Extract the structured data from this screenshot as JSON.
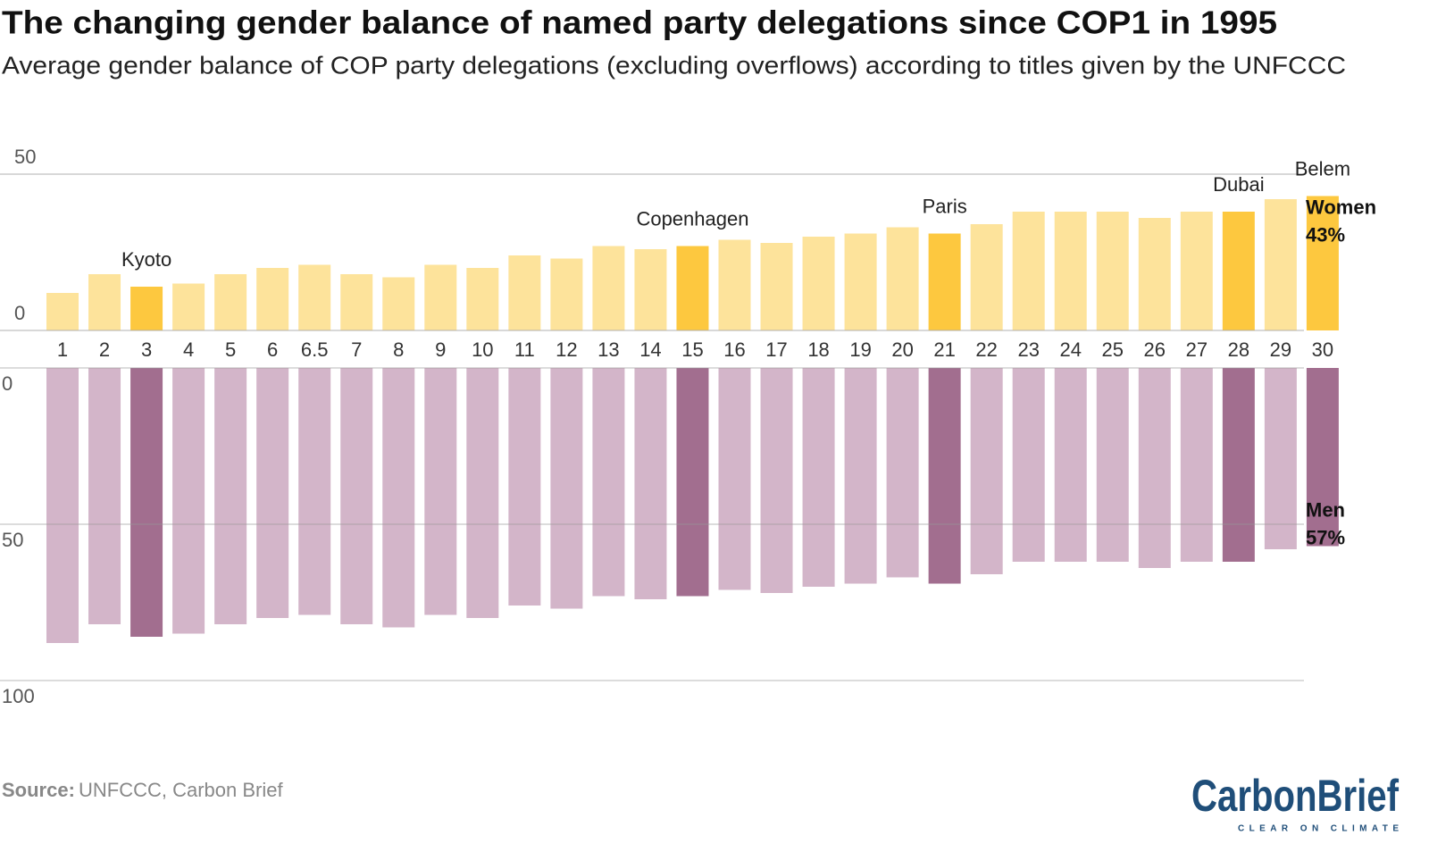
{
  "chart_data": {
    "type": "bar",
    "title": "The changing gender balance of named party delegations since COP1 in 1995",
    "subtitle": "Average gender balance of COP party delegations (excluding overflows) according to titles given by the UNFCCC",
    "categories": [
      "1",
      "2",
      "3",
      "4",
      "5",
      "6",
      "6.5",
      "7",
      "8",
      "9",
      "10",
      "11",
      "12",
      "13",
      "14",
      "15",
      "16",
      "17",
      "18",
      "19",
      "20",
      "21",
      "22",
      "23",
      "24",
      "25",
      "26",
      "27",
      "28",
      "29",
      "30"
    ],
    "series": [
      {
        "name": "Women",
        "color": "#fde39b",
        "highlight_color": "#fdc83f",
        "values": [
          12,
          18,
          14,
          15,
          18,
          20,
          21,
          18,
          17,
          21,
          20,
          24,
          23,
          27,
          26,
          27,
          29,
          28,
          30,
          31,
          33,
          31,
          34,
          38,
          38,
          38,
          36,
          38,
          38,
          42,
          43
        ],
        "value_labels": [
          null,
          null,
          null,
          null,
          null,
          null,
          null,
          null,
          null,
          null,
          null,
          null,
          null,
          null,
          null,
          null,
          null,
          null,
          null,
          null,
          null,
          null,
          null,
          null,
          null,
          null,
          null,
          null,
          null,
          null,
          "43%"
        ]
      },
      {
        "name": "Men",
        "color": "#d3b5c9",
        "highlight_color": "#a26e8f",
        "axis": "y2",
        "values": [
          88,
          82,
          86,
          85,
          82,
          80,
          79,
          82,
          83,
          79,
          80,
          76,
          77,
          73,
          74,
          73,
          71,
          72,
          70,
          69,
          67,
          69,
          66,
          62,
          62,
          62,
          64,
          62,
          62,
          58,
          57
        ],
        "value_labels": [
          null,
          null,
          null,
          null,
          null,
          null,
          null,
          null,
          null,
          null,
          null,
          null,
          null,
          null,
          null,
          null,
          null,
          null,
          null,
          null,
          null,
          null,
          null,
          null,
          null,
          null,
          null,
          null,
          null,
          null,
          "57%"
        ]
      }
    ],
    "annotations": [
      {
        "category": "3",
        "text": "Kyoto"
      },
      {
        "category": "15",
        "text": "Copenhagen"
      },
      {
        "category": "21",
        "text": "Paris"
      },
      {
        "category": "28",
        "text": "Dubai"
      },
      {
        "category": "30",
        "text": "Belem"
      }
    ],
    "ylim": [
      0,
      50
    ],
    "yticks": [
      0,
      50
    ],
    "y2lim": [
      0,
      100
    ],
    "y2ticks": [
      0,
      50,
      100
    ],
    "y2_inverted": true,
    "grid": true
  },
  "source": {
    "label": "Source:",
    "text": "UNFCCC, Carbon Brief"
  },
  "logo": {
    "name": "CarbonBrief",
    "tagline": "CLEAR ON CLIMATE"
  }
}
